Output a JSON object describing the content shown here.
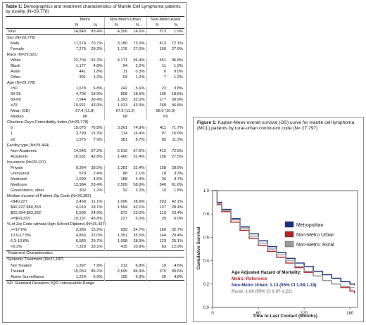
{
  "table": {
    "title_bold": "Table 1:",
    "title_rest": " Demographics and treatment characteristics of Mantle Cell Lymphoma patients by rurality (N=29,778)",
    "group_headers": [
      "Metro",
      "Non-Metro:Urban",
      "Non-Metro:Rural"
    ],
    "col_n": "N",
    "col_pct": "%",
    "rows": [
      {
        "t": "total",
        "label": "Total",
        "v": [
          "24,849",
          "83.4%",
          "4,356",
          "14.6%",
          "573",
          "1.9%"
        ]
      },
      {
        "t": "sec",
        "label": "Sex (N=29,778)"
      },
      {
        "t": "sub",
        "label": "Male",
        "v": [
          "17,574",
          "70.7%",
          "3,180",
          "73.0%",
          "413",
          "72.1%"
        ]
      },
      {
        "t": "sub",
        "label": "Female",
        "v": [
          "7,275",
          "29.3%",
          "1,176",
          "27.0%",
          "160",
          "27.9%"
        ]
      },
      {
        "t": "sec",
        "label": "Race (N=29,521)"
      },
      {
        "t": "sub",
        "label": "White",
        "v": [
          "22,704",
          "92.2%",
          "4,171",
          "96.4%",
          "551",
          "96.8%"
        ]
      },
      {
        "t": "sub",
        "label": "Black",
        "v": [
          "1,177",
          "4.8%",
          "94",
          "2.2%",
          "11",
          "1.9%"
        ]
      },
      {
        "t": "sub",
        "label": "Asian",
        "v": [
          "441",
          "1.8%",
          "11",
          "0.3%",
          "0",
          "0.0%"
        ]
      },
      {
        "t": "sub",
        "label": "Other",
        "v": [
          "301",
          "1.2%",
          "53",
          "1.2%",
          "7",
          "1.2%"
        ]
      },
      {
        "t": "sec",
        "label": "Age (N=29,778)"
      },
      {
        "t": "sub",
        "label": "<50",
        "v": [
          "1,678",
          "6.8%",
          "242",
          "5.6%",
          "22",
          "3.8%"
        ]
      },
      {
        "t": "sub",
        "label": "50-59",
        "v": [
          "4,706",
          "18.9%",
          "808",
          "18.5%",
          "106",
          "18.5%"
        ]
      },
      {
        "t": "sub",
        "label": "60-69",
        "v": [
          "7,544",
          "30.4%",
          "1,393",
          "32.0%",
          "177",
          "30.9%"
        ]
      },
      {
        "t": "sub",
        "label": "≥70",
        "v": [
          "10,921",
          "43.9%",
          "1,913",
          "43.9%",
          "268",
          "46.8%"
        ]
      },
      {
        "t": "span",
        "label": "Mean (SD)",
        "v": [
          "67.4 (11.8)",
          "67.5 (11.2)",
          "68.0 (10.9)"
        ]
      },
      {
        "t": "span",
        "label": "Median",
        "v": [
          "68",
          "68",
          "69"
        ]
      },
      {
        "t": "sec",
        "label": "Charlson-Deyo Comorbidity Index (N=29,778)"
      },
      {
        "t": "sub",
        "label": "0",
        "v": [
          "19,075",
          "76.8%",
          "3,261",
          "74.9%",
          "411",
          "71.7%"
        ]
      },
      {
        "t": "sub",
        "label": "1",
        "v": [
          "3,799",
          "15.3%",
          "714",
          "16.4%",
          "97",
          "16.9%"
        ]
      },
      {
        "t": "sub",
        "label": "≥2",
        "v": [
          "1,975",
          "7.9%",
          "381",
          "8.7%",
          "65",
          "11.3%"
        ]
      },
      {
        "t": "sec",
        "label": "Facility type (N=29,464)"
      },
      {
        "t": "sub",
        "label": "Non-Academic",
        "v": [
          "14,046",
          "57.2%",
          "2,919",
          "67.6%",
          "412",
          "72.5%"
        ]
      },
      {
        "t": "sub",
        "label": "Academic",
        "v": [
          "10,531",
          "42.8%",
          "1,400",
          "32.4%",
          "156",
          "27.5%"
        ]
      },
      {
        "t": "sec",
        "label": "Insurance (N=29,137)"
      },
      {
        "t": "sub",
        "label": "Private",
        "v": [
          "9,364",
          "38.5%",
          "1,381",
          "32.4%",
          "158",
          "28.6%"
        ]
      },
      {
        "t": "sub",
        "label": "Uninsured",
        "v": [
          "578",
          "2.4%",
          "88",
          "2.1%",
          "18",
          "3.3%"
        ]
      },
      {
        "t": "sub",
        "label": "Medicaid",
        "v": [
          "1,099",
          "4.5%",
          "188",
          "4.4%",
          "26",
          "4.7%"
        ]
      },
      {
        "t": "sub",
        "label": "Medicare",
        "v": [
          "12,984",
          "53.4%",
          "2,509",
          "58.9%",
          "340",
          "61.6%"
        ]
      },
      {
        "t": "sub",
        "label": "Government, other",
        "v": [
          "302",
          "1.2%",
          "92",
          "2.2%",
          "10",
          "1.8%"
        ]
      },
      {
        "t": "sec",
        "label": "Median Income of Patient Zip Code (N=26,382)"
      },
      {
        "t": "sub",
        "label": "<$40,227",
        "v": [
          "2,458",
          "11.1%",
          "1,096",
          "28.9%",
          "203",
          "42.1%"
        ]
      },
      {
        "t": "sub",
        "label": "$40,227-$50,353",
        "v": [
          "4,010",
          "18.1%",
          "1,594",
          "42.1%",
          "137",
          "28.4%"
        ]
      },
      {
        "t": "sub",
        "label": "$50,354-$63,332",
        "v": [
          "5,506",
          "24.9%",
          "872",
          "23.0%",
          "113",
          "23.4%"
        ]
      },
      {
        "t": "sub",
        "label": ">=$63,333",
        "v": [
          "10,137",
          "45.8%",
          "227",
          "6.0%",
          "29",
          "6.0%"
        ]
      },
      {
        "t": "sec",
        "label": "% of Zip Code without High School Diploma (N=26,437)"
      },
      {
        "t": "sub",
        "label": ">=17.6%",
        "v": [
          "3,366",
          "15.2%",
          "939",
          "24.7%",
          "160",
          "32.7%"
        ]
      },
      {
        "t": "sub",
        "label": "10.9-17.5%",
        "v": [
          "4,866",
          "22.0%",
          "1,351",
          "35.5%",
          "144",
          "29.4%"
        ]
      },
      {
        "t": "sub",
        "label": "6.3-10.8%",
        "v": [
          "6,583",
          "29.7%",
          "1,098",
          "28.9%",
          "123",
          "25.1%"
        ]
      },
      {
        "t": "sub",
        "label": "<6.3%",
        "v": [
          "7,329",
          "33.1%",
          "415",
          "10.9%",
          "63",
          "12.9%"
        ]
      },
      {
        "t": "divider",
        "label": "Treatment Characteristics"
      },
      {
        "t": "divider",
        "label": "Systemic Treatment (N=21,187)"
      },
      {
        "t": "sub",
        "label": "Not Treated",
        "v": [
          "1,397",
          "7.9%",
          "212",
          "6.8%",
          "19",
          "4.6%"
        ]
      },
      {
        "t": "sub",
        "label": "Treated",
        "v": [
          "15,050",
          "85.2%",
          "2,695",
          "86.9%",
          "375",
          "90.6%"
        ]
      },
      {
        "t": "sub",
        "label": "Active Surveillance",
        "v": [
          "1,224",
          "6.9%",
          "195",
          "6.3%",
          "20",
          "4.8%"
        ]
      },
      {
        "t": "foot",
        "label": "SD: Standard Deviation; IQR: Interquartile Range"
      }
    ]
  },
  "figure": {
    "title_bold": "Figure 1:",
    "title_rest": " Kaplan-Meier overall survival (OS) curve for mantle cell lymphoma (MCL) patients by rural-urban continuum code (N= 27,797)",
    "annotation": {
      "title_line1": "Age Adjusted Hazard of Mortality:",
      "line_metro": "Metro: Reference",
      "line_urban": "Non-Metro Urban: 1.13 (95% CI 1.08-1.18)",
      "line_rural": "Rural: 1.09 (95% CI 0.97-1.22)"
    }
  },
  "chart_data": {
    "type": "line",
    "xlabel": "Time to Last Contact (Months)",
    "ylabel": "Cumulative Survival",
    "xlim": [
      0,
      190
    ],
    "ylim": [
      0,
      1.0
    ],
    "x_ticks": [
      0,
      60,
      120,
      180
    ],
    "y_ticks": [
      0.0,
      0.2,
      0.4,
      0.6,
      0.8,
      1.0
    ],
    "y_tick_labels": [
      "0.0",
      "0.2",
      "0.4",
      "0.6",
      "0.8",
      "1.0"
    ],
    "legend_position": "right",
    "series": [
      {
        "name": "Metropolitan",
        "color": "#1c2f7a",
        "x": [
          0,
          6,
          12,
          24,
          36,
          48,
          60,
          72,
          84,
          96,
          108,
          120,
          132,
          144,
          156,
          168,
          180,
          186
        ],
        "y": [
          1.0,
          0.9,
          0.84,
          0.76,
          0.69,
          0.63,
          0.57,
          0.52,
          0.47,
          0.42,
          0.38,
          0.35,
          0.31,
          0.28,
          0.25,
          0.22,
          0.2,
          0.19
        ]
      },
      {
        "name": "Non-Metro Urban",
        "color": "#b0262c",
        "x": [
          0,
          6,
          12,
          24,
          36,
          48,
          60,
          72,
          84,
          96,
          108,
          120,
          132,
          144,
          156,
          168,
          180,
          186
        ],
        "y": [
          1.0,
          0.88,
          0.82,
          0.73,
          0.66,
          0.59,
          0.53,
          0.48,
          0.43,
          0.38,
          0.34,
          0.3,
          0.27,
          0.23,
          0.2,
          0.17,
          0.14,
          0.12
        ]
      },
      {
        "name": "Non-Metro: Rural",
        "color": "#9a9a9a",
        "x": [
          0,
          6,
          12,
          24,
          36,
          48,
          60,
          72,
          84,
          96,
          108,
          120,
          132,
          144,
          156,
          168,
          180,
          186
        ],
        "y": [
          1.0,
          0.89,
          0.83,
          0.75,
          0.68,
          0.61,
          0.55,
          0.5,
          0.45,
          0.4,
          0.35,
          0.31,
          0.27,
          0.23,
          0.2,
          0.18,
          0.17,
          0.17
        ]
      }
    ]
  }
}
